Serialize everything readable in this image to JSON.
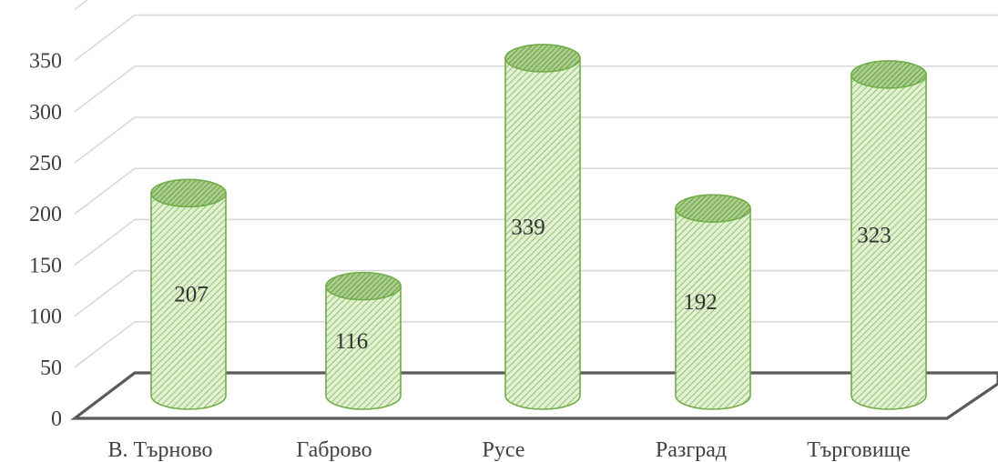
{
  "chart_data": {
    "type": "bar",
    "style": "3d-cylinder",
    "categories": [
      "В. Търново",
      "Габрово",
      "Русе",
      "Разград",
      "Търговище"
    ],
    "values": [
      207,
      116,
      339,
      192,
      323
    ],
    "title": "",
    "xlabel": "",
    "ylabel": "",
    "ylim": [
      0,
      400
    ],
    "yticks": [
      "0",
      "50",
      "100",
      "150",
      "200",
      "250",
      "300",
      "350"
    ],
    "data_labels": [
      "207",
      "116",
      "339",
      "192",
      "323"
    ],
    "grid": true,
    "legend": "none",
    "colors": {
      "bar_fill": "#c6e3a7",
      "bar_hatch": "#70ad47",
      "bar_outline": "#70ad47",
      "floor": "#595959",
      "gridline": "#d9d9d9",
      "text": "#404040"
    }
  }
}
